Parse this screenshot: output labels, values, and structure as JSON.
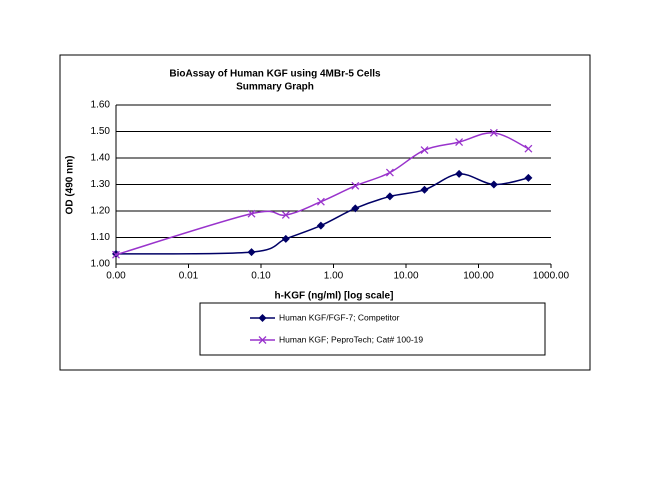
{
  "chart_data": {
    "type": "line",
    "title": "BioAssay of Human KGF using 4MBr-5 Cells",
    "subtitle": "Summary Graph",
    "x_label": "h-KGF (ng/ml) [log scale]",
    "y_label": "OD (490 nm)",
    "xscale": "log",
    "xlim": [
      0.001,
      1000
    ],
    "xticks": [
      {
        "value": 0.001,
        "label": "0.00"
      },
      0.01,
      {
        "value": 0.1,
        "label": "0.10"
      },
      {
        "value": 1,
        "label": "1.00"
      },
      {
        "value": 10,
        "label": "10.00"
      },
      {
        "value": 100,
        "label": "100.00"
      },
      {
        "value": 1000,
        "label": "1000.00"
      }
    ],
    "ylim": [
      1.0,
      1.6
    ],
    "yticks": [
      {
        "value": 1.0,
        "label": "1.00"
      },
      {
        "value": 1.1,
        "label": "1.10"
      },
      {
        "value": 1.2,
        "label": "1.20"
      },
      {
        "value": 1.3,
        "label": "1.30"
      },
      {
        "value": 1.4,
        "label": "1.40"
      },
      {
        "value": 1.5,
        "label": "1.50"
      },
      {
        "value": 1.6,
        "label": "1.60"
      }
    ],
    "grid": true,
    "x": [
      0.001,
      0.074,
      0.22,
      0.67,
      2,
      6,
      18,
      54,
      163,
      488
    ],
    "series": [
      {
        "name": "Human KGF/FGF-7; Competitor",
        "color": "#000066",
        "marker": "diamond",
        "values": [
          1.038,
          1.045,
          1.095,
          1.145,
          1.21,
          1.255,
          1.28,
          1.34,
          1.3,
          1.325
        ]
      },
      {
        "name": "Human KGF; PeproTech; Cat# 100-19",
        "color": "#9933cc",
        "marker": "x",
        "values": [
          1.035,
          1.19,
          1.185,
          1.235,
          1.295,
          1.345,
          1.43,
          1.46,
          1.495,
          1.435
        ]
      }
    ]
  }
}
